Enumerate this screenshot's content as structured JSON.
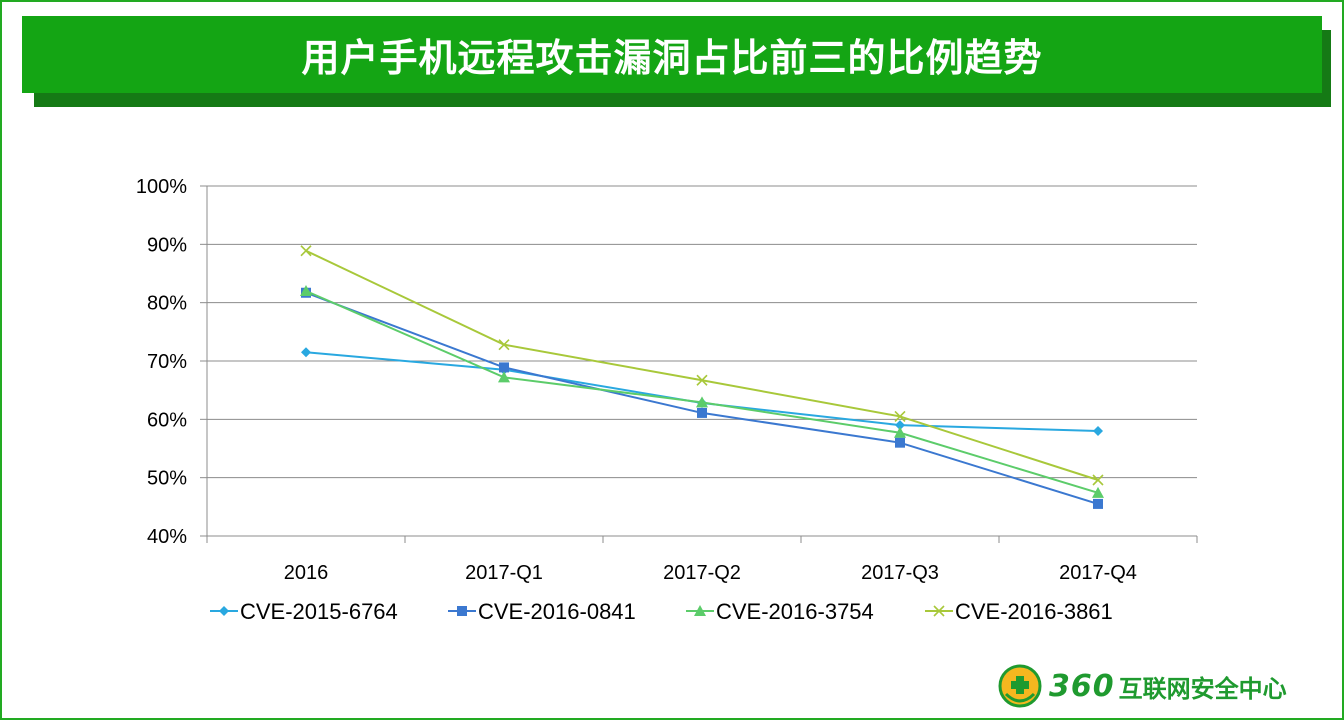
{
  "title": "用户手机远程攻击漏洞占比前三的比例趋势",
  "logo": {
    "number": "360",
    "text": "互联网安全中心"
  },
  "colors": {
    "title_bg": "#14a514",
    "title_shadow": "#157a15",
    "frame": "#22aa22",
    "grid": "#8c8c8c",
    "logo": "#1f9a2f"
  },
  "chart_data": {
    "type": "line",
    "title": "",
    "xlabel": "",
    "ylabel": "",
    "categories": [
      "2016",
      "2017-Q1",
      "2017-Q2",
      "2017-Q3",
      "2017-Q4"
    ],
    "ylim": [
      40,
      100
    ],
    "yticks": [
      40,
      50,
      60,
      70,
      80,
      90,
      100
    ],
    "ytick_labels": [
      "40%",
      "50%",
      "60%",
      "70%",
      "80%",
      "90%",
      "100%"
    ],
    "grid": true,
    "legend_position": "bottom",
    "series": [
      {
        "name": "CVE-2015-6764",
        "color": "#29a8e0",
        "marker": "diamond",
        "values": [
          71.5,
          68.5,
          62.8,
          59.0,
          58.0
        ]
      },
      {
        "name": "CVE-2016-0841",
        "color": "#3b78d0",
        "marker": "square",
        "values": [
          81.7,
          68.9,
          61.1,
          56.0,
          45.5
        ]
      },
      {
        "name": "CVE-2016-3754",
        "color": "#5ccc6a",
        "marker": "triangle",
        "values": [
          82.0,
          67.2,
          62.9,
          57.7,
          47.4
        ]
      },
      {
        "name": "CVE-2016-3861",
        "color": "#a8c83a",
        "marker": "x",
        "values": [
          88.9,
          72.8,
          66.7,
          60.5,
          49.6
        ]
      }
    ]
  }
}
